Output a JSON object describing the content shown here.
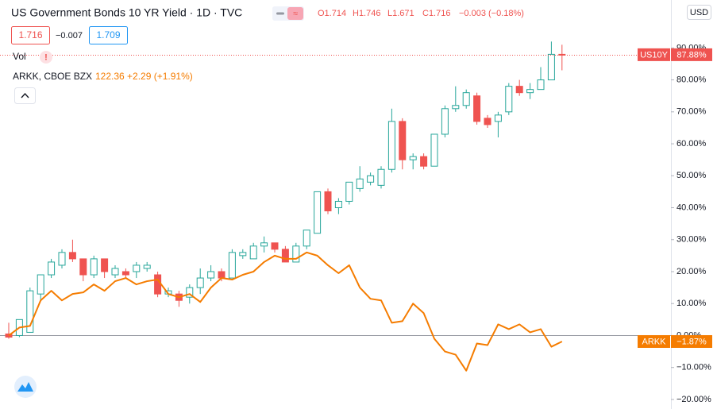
{
  "chart_data": {
    "type": "candlestick",
    "header": {
      "title": "US Government Bonds 10 YR Yield · 1D · TVC",
      "ohlc": [
        "O1.714",
        "H1.746",
        "L1.671",
        "C1.716",
        "−0.003 (−0.18%)"
      ],
      "bid": "1.716",
      "spread": "−0.007",
      "ask": "1.709",
      "volume": "Vol",
      "compare_name": "ARKK, CBOE BZX",
      "compare_quote": "122.36 +2.29 (+1.91%)",
      "currency": "USD"
    },
    "categories": [
      null,
      null,
      null,
      null,
      null,
      null,
      null,
      null,
      null,
      null,
      null,
      null,
      null,
      null,
      null,
      null,
      null,
      null,
      null,
      null,
      null,
      null,
      null,
      null,
      null,
      null,
      null,
      null,
      null,
      null,
      null,
      null,
      null,
      null,
      null,
      null,
      null,
      null,
      null,
      null,
      null,
      null,
      null,
      null,
      null,
      null,
      null,
      null,
      null,
      null,
      null,
      null,
      null
    ],
    "series": [
      {
        "name": "US10Y",
        "type": "candlestick",
        "up_color": "#26a69a",
        "down_color": "#ef5350",
        "open": [
          0.5,
          0,
          1,
          13,
          19,
          22,
          26,
          24,
          19,
          24,
          19,
          20,
          20,
          21,
          19,
          13,
          13,
          12,
          15,
          18,
          20,
          18,
          25,
          24,
          28,
          29,
          27,
          23,
          28,
          32,
          45,
          40,
          42,
          46,
          48,
          47,
          52,
          67,
          55,
          56,
          53,
          63,
          71,
          72,
          75,
          68,
          67,
          70,
          78,
          76,
          77,
          80,
          88
        ],
        "high": [
          4,
          5,
          15,
          19,
          24,
          27,
          30,
          24,
          25,
          24,
          22,
          21,
          23,
          23,
          20,
          15,
          14,
          16,
          21,
          22,
          21,
          27,
          27,
          29,
          31,
          29,
          28,
          29,
          33,
          45,
          46,
          43,
          48,
          53,
          51,
          53,
          71,
          68,
          57,
          57,
          63,
          72,
          78,
          77,
          76,
          69,
          70,
          79,
          80,
          79,
          84,
          92,
          91
        ],
        "low": [
          -1,
          -0.5,
          1,
          11,
          18,
          21,
          23,
          17,
          18,
          18,
          18,
          18,
          18,
          20,
          12,
          12,
          9,
          10,
          13,
          17,
          17,
          18,
          24,
          24,
          26,
          26,
          23,
          23,
          27,
          32,
          38,
          38,
          41,
          45,
          47,
          46,
          51,
          52,
          52,
          52,
          53,
          62,
          70,
          71,
          66,
          65,
          62,
          69,
          75,
          74,
          77,
          80,
          83
        ],
        "close": [
          -0.5,
          5,
          14,
          19,
          23,
          26,
          24,
          19,
          24,
          20,
          21,
          19,
          22,
          22,
          13,
          14,
          11,
          15,
          18,
          20,
          18,
          26,
          26,
          28,
          29,
          27,
          23,
          28,
          33,
          45,
          39,
          42,
          48,
          49,
          50,
          52,
          67,
          55,
          56,
          53,
          63,
          71,
          72,
          76,
          67,
          66,
          69,
          78,
          76,
          77,
          80,
          88,
          87.88
        ]
      },
      {
        "name": "ARKK",
        "type": "line",
        "color": "#f57c00",
        "values": [
          0,
          2.5,
          3,
          11,
          14,
          11,
          13,
          13.5,
          16,
          14,
          17,
          18,
          16,
          17,
          17.5,
          13,
          12,
          13,
          10.5,
          15,
          18,
          17.5,
          19,
          20,
          23,
          25,
          24,
          24,
          26,
          25,
          22,
          19.5,
          22,
          15,
          11.5,
          11,
          4,
          4.5,
          10,
          7,
          -1,
          -5,
          -6,
          -11,
          -2.5,
          -3,
          3.5,
          2,
          3.5,
          1,
          2,
          -3.5,
          -1.87
        ]
      }
    ],
    "price_labels": [
      {
        "name": "US10Y",
        "value": 87.88,
        "label": "87.88%",
        "color": "#ef5350"
      },
      {
        "name": "ARKK",
        "value": -1.87,
        "label": "−1.87%",
        "color": "#f57c00"
      }
    ],
    "ylim": [
      -23,
      105
    ],
    "yticks": [
      {
        "value": -20,
        "label": "−20.00%"
      },
      {
        "value": -10,
        "label": "−10.00%"
      },
      {
        "value": 0,
        "label": "0.00%"
      },
      {
        "value": 10,
        "label": "10.00%"
      },
      {
        "value": 20,
        "label": "20.00%"
      },
      {
        "value": 30,
        "label": "30.00%"
      },
      {
        "value": 40,
        "label": "40.00%"
      },
      {
        "value": 50,
        "label": "50.00%"
      },
      {
        "value": 60,
        "label": "60.00%"
      },
      {
        "value": 70,
        "label": "70.00%"
      },
      {
        "value": 80,
        "label": "80.00%"
      },
      {
        "value": 90,
        "label": "90.00%"
      }
    ],
    "grid": false
  }
}
